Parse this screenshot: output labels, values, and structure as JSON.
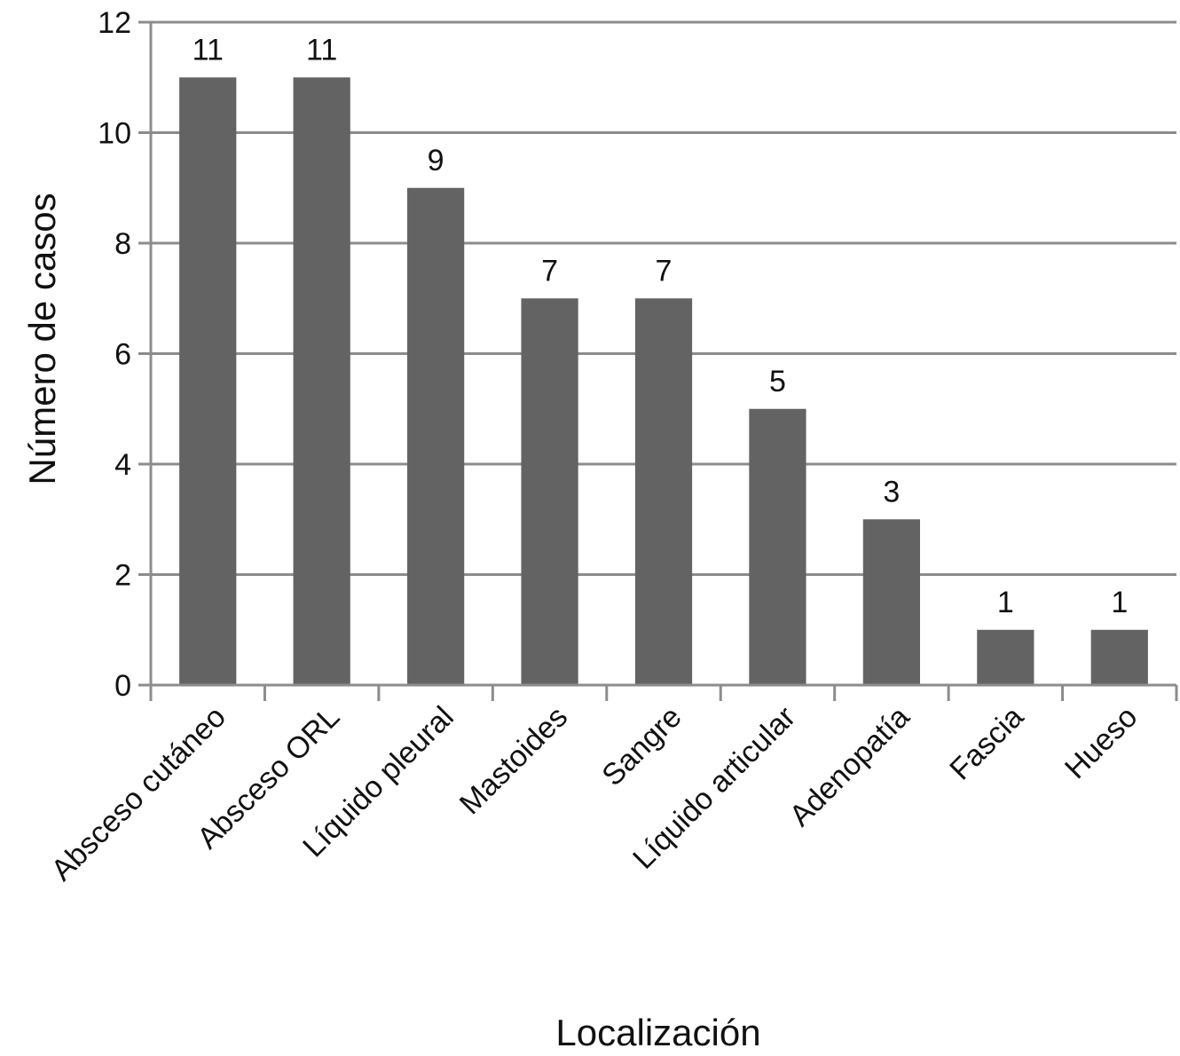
{
  "chart_data": {
    "type": "bar",
    "title": "",
    "xlabel": "Localización",
    "ylabel": "Número de casos",
    "ylim": [
      0,
      12
    ],
    "yticks": [
      0,
      2,
      4,
      6,
      8,
      10,
      12
    ],
    "grid": true,
    "legend": "none",
    "bar_color": "#636363",
    "categories": [
      "Absceso cutáneo",
      "Absceso ORL",
      "Líquido pleural",
      "Mastoides",
      "Sangre",
      "Líquido articular",
      "Adenopatía",
      "Fascia",
      "Hueso"
    ],
    "values": [
      11,
      11,
      9,
      7,
      7,
      5,
      3,
      1,
      1
    ],
    "data_labels": [
      "11",
      "11",
      "9",
      "7",
      "7",
      "5",
      "3",
      "1",
      "1"
    ]
  }
}
